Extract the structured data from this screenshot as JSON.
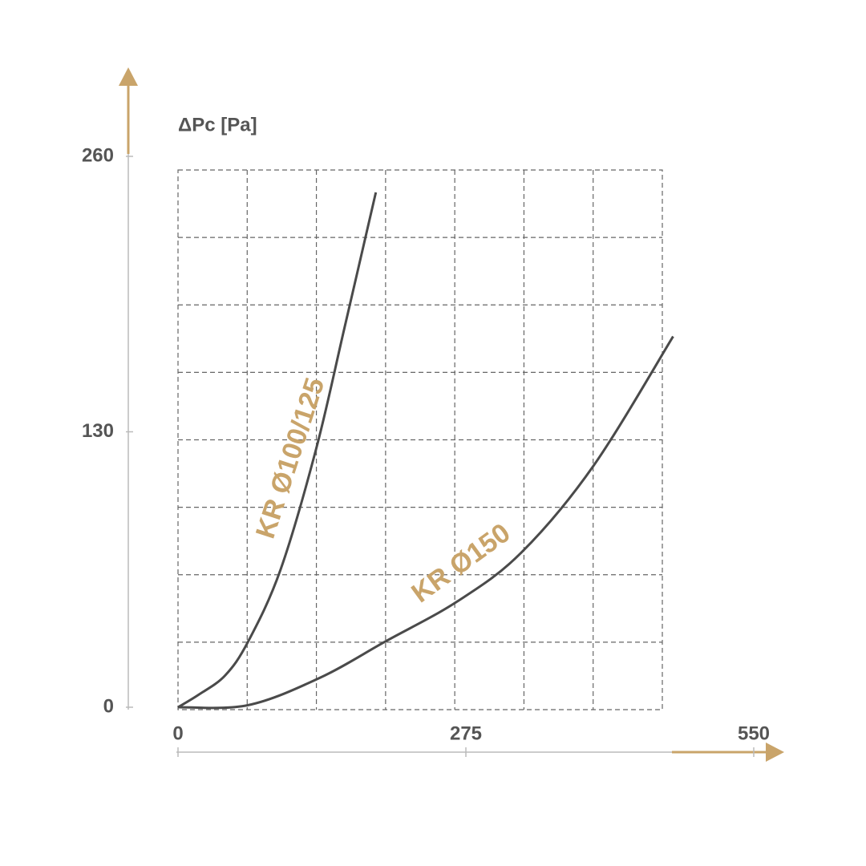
{
  "chart_data": {
    "type": "line",
    "y_label": "ΔPc [Pa]",
    "xlim": [
      0,
      550
    ],
    "ylim": [
      0,
      260
    ],
    "xticks": [
      0,
      275,
      550
    ],
    "yticks": [
      0,
      130,
      260
    ],
    "grid": true,
    "series": [
      {
        "name": "KR Ø100/125",
        "color": "#4a4a4a",
        "x": [
          0,
          20,
          45,
          67,
          98,
          132,
          159,
          189
        ],
        "values": [
          0,
          6,
          15,
          31,
          65,
          122,
          179,
          243
        ]
      },
      {
        "name": "KR Ø150",
        "color": "#4a4a4a",
        "x": [
          0,
          67,
          136,
          198,
          267,
          328,
          397,
          473
        ],
        "values": [
          0,
          1,
          14,
          31,
          50,
          73,
          114,
          175
        ]
      }
    ]
  }
}
